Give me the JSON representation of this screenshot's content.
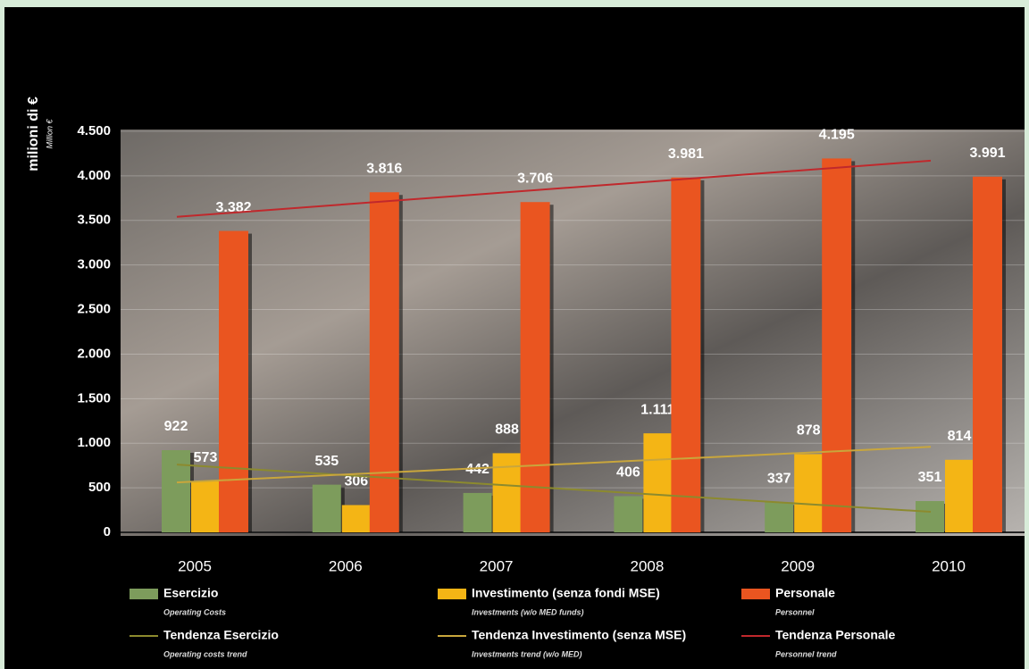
{
  "chart_data": {
    "type": "bar",
    "y_label": "milioni di €",
    "y_label_en": "Million €",
    "categories": [
      "2005",
      "2006",
      "2007",
      "2008",
      "2009",
      "2010"
    ],
    "ylim": [
      0,
      4500
    ],
    "yticks": [
      0,
      500,
      {
        "value": 1000,
        "label": "1.000"
      },
      {
        "value": 1500,
        "label": "1.500"
      },
      {
        "value": 2000,
        "label": "2.000"
      },
      {
        "value": 2500,
        "label": "2.500"
      },
      {
        "value": 3000,
        "label": "3.000"
      },
      {
        "value": 3500,
        "label": "3.500"
      },
      {
        "value": 4000,
        "label": "4.000"
      },
      {
        "value": 4500,
        "label": "4.500"
      }
    ],
    "grid": true,
    "series": [
      {
        "name": "Esercizio",
        "name_en": "Operating Costs",
        "type": "bar",
        "color": "#7d9c5c",
        "values": [
          922,
          535,
          442,
          406,
          337,
          351
        ]
      },
      {
        "name": "Investimento (senza fondi MSE)",
        "name_en": "Investments (w/o MED funds)",
        "type": "bar",
        "color": "#f4b515",
        "values": [
          573,
          306,
          888,
          1111,
          878,
          814
        ],
        "value_labels": [
          "573",
          "306",
          "888",
          "1.111",
          "878",
          "814"
        ]
      },
      {
        "name": "Personale",
        "name_en": "Personnel",
        "type": "bar",
        "color": "#ea5520",
        "values": [
          3382,
          3816,
          3706,
          3981,
          4195,
          3991
        ],
        "value_labels": [
          "3.382",
          "3.816",
          "3.706",
          "3.981",
          "4.195",
          "3.991"
        ]
      },
      {
        "name": "Tendenza Esercizio",
        "name_en": "Operating costs trend",
        "type": "line",
        "color": "#8c8a2e",
        "values": [
          760,
          654,
          548,
          442,
          336,
          230
        ]
      },
      {
        "name": "Tendenza Investimento (senza MSE)",
        "name_en": "Investments trend (w/o MED)",
        "type": "line",
        "color": "#c9a63c",
        "values": [
          560,
          640,
          720,
          800,
          880,
          960
        ]
      },
      {
        "name": "Tendenza Personale",
        "name_en": "Personnel trend",
        "type": "line",
        "color": "#c0282c",
        "values": [
          3540,
          3666,
          3792,
          3918,
          4044,
          4170
        ]
      }
    ]
  }
}
